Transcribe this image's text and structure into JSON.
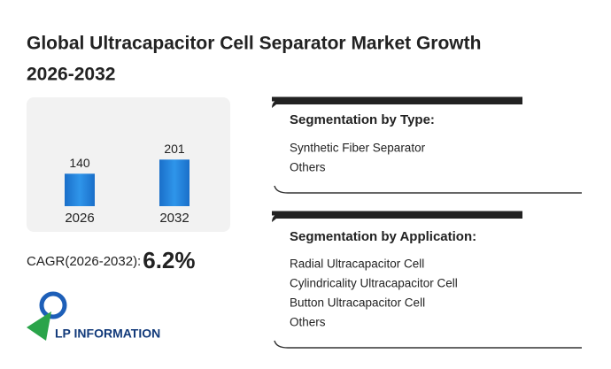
{
  "title_line1": "Global Ultracapacitor Cell Separator Market Growth",
  "title_line2": "2026-2032",
  "chart_data": {
    "type": "bar",
    "categories": [
      "2026",
      "2032"
    ],
    "values": [
      140,
      201
    ],
    "color": "#2a8be0"
  },
  "cagr": {
    "label": "CAGR(2026-2032):",
    "value": "6.2%"
  },
  "segment_type": {
    "heading": "Segmentation by Type:",
    "items": [
      "Synthetic Fiber Separator",
      "Others"
    ]
  },
  "segment_application": {
    "heading": "Segmentation by Application:",
    "items": [
      "Radial Ultracapacitor Cell",
      "Cylindricality Ultracapacitor Cell",
      "Button Ultracapacitor Cell",
      "Others"
    ]
  },
  "logo_text": "LP INFORMATION"
}
